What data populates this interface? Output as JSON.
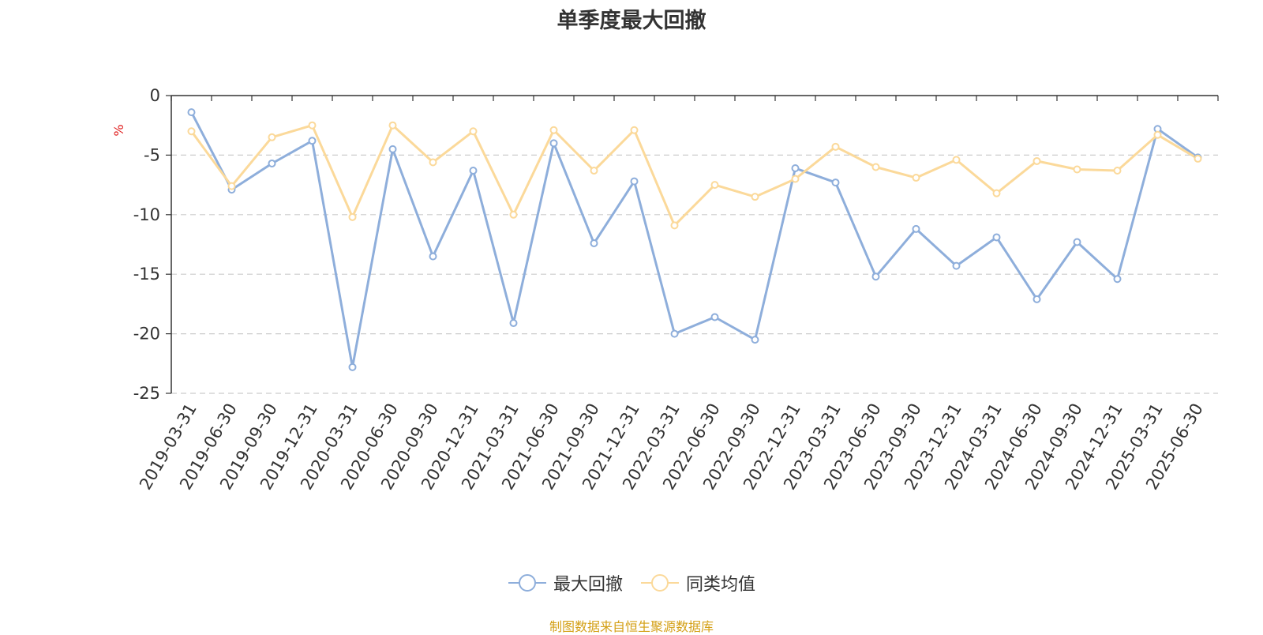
{
  "chart_data": {
    "type": "line",
    "title": "单季度最大回撤",
    "ylabel": "%",
    "ylim": [
      -25,
      0
    ],
    "yticks": [
      0,
      -5,
      -10,
      -15,
      -20,
      -25
    ],
    "grid": true,
    "legend_position": "bottom",
    "x": [
      "2019-03-31",
      "2019-06-30",
      "2019-09-30",
      "2019-12-31",
      "2020-03-31",
      "2020-06-30",
      "2020-09-30",
      "2020-12-31",
      "2021-03-31",
      "2021-06-30",
      "2021-09-30",
      "2021-12-31",
      "2022-03-31",
      "2022-06-30",
      "2022-09-30",
      "2022-12-31",
      "2023-03-31",
      "2023-06-30",
      "2023-09-30",
      "2023-12-31",
      "2024-03-31",
      "2024-06-30",
      "2024-09-30",
      "2024-12-31",
      "2025-03-31",
      "2025-06-30"
    ],
    "series": [
      {
        "name": "最大回撤",
        "color": "#8eaedb",
        "values": [
          -1.4,
          -7.9,
          -5.7,
          -3.8,
          -22.8,
          -4.5,
          -13.5,
          -6.3,
          -19.1,
          -4.0,
          -12.4,
          -7.2,
          -20.0,
          -18.6,
          -20.5,
          -6.1,
          -7.3,
          -15.2,
          -11.2,
          -14.3,
          -11.9,
          -17.1,
          -12.3,
          -15.4,
          -2.8,
          -5.2
        ]
      },
      {
        "name": "同类均值",
        "color": "#fbd99a",
        "values": [
          -3.0,
          -7.6,
          -3.5,
          -2.5,
          -10.2,
          -2.5,
          -5.6,
          -3.0,
          -10.0,
          -2.9,
          -6.3,
          -2.9,
          -10.9,
          -7.5,
          -8.5,
          -7.0,
          -4.3,
          -6.0,
          -6.9,
          -5.4,
          -8.2,
          -5.5,
          -6.2,
          -6.3,
          -3.3,
          -5.3
        ]
      }
    ]
  },
  "source_note": "制图数据来自恒生聚源数据库",
  "colors": {
    "title": "#333333",
    "axis": "#333333",
    "ylabel": "#e02020",
    "grid": "#cccccc",
    "source": "#d4a017"
  }
}
